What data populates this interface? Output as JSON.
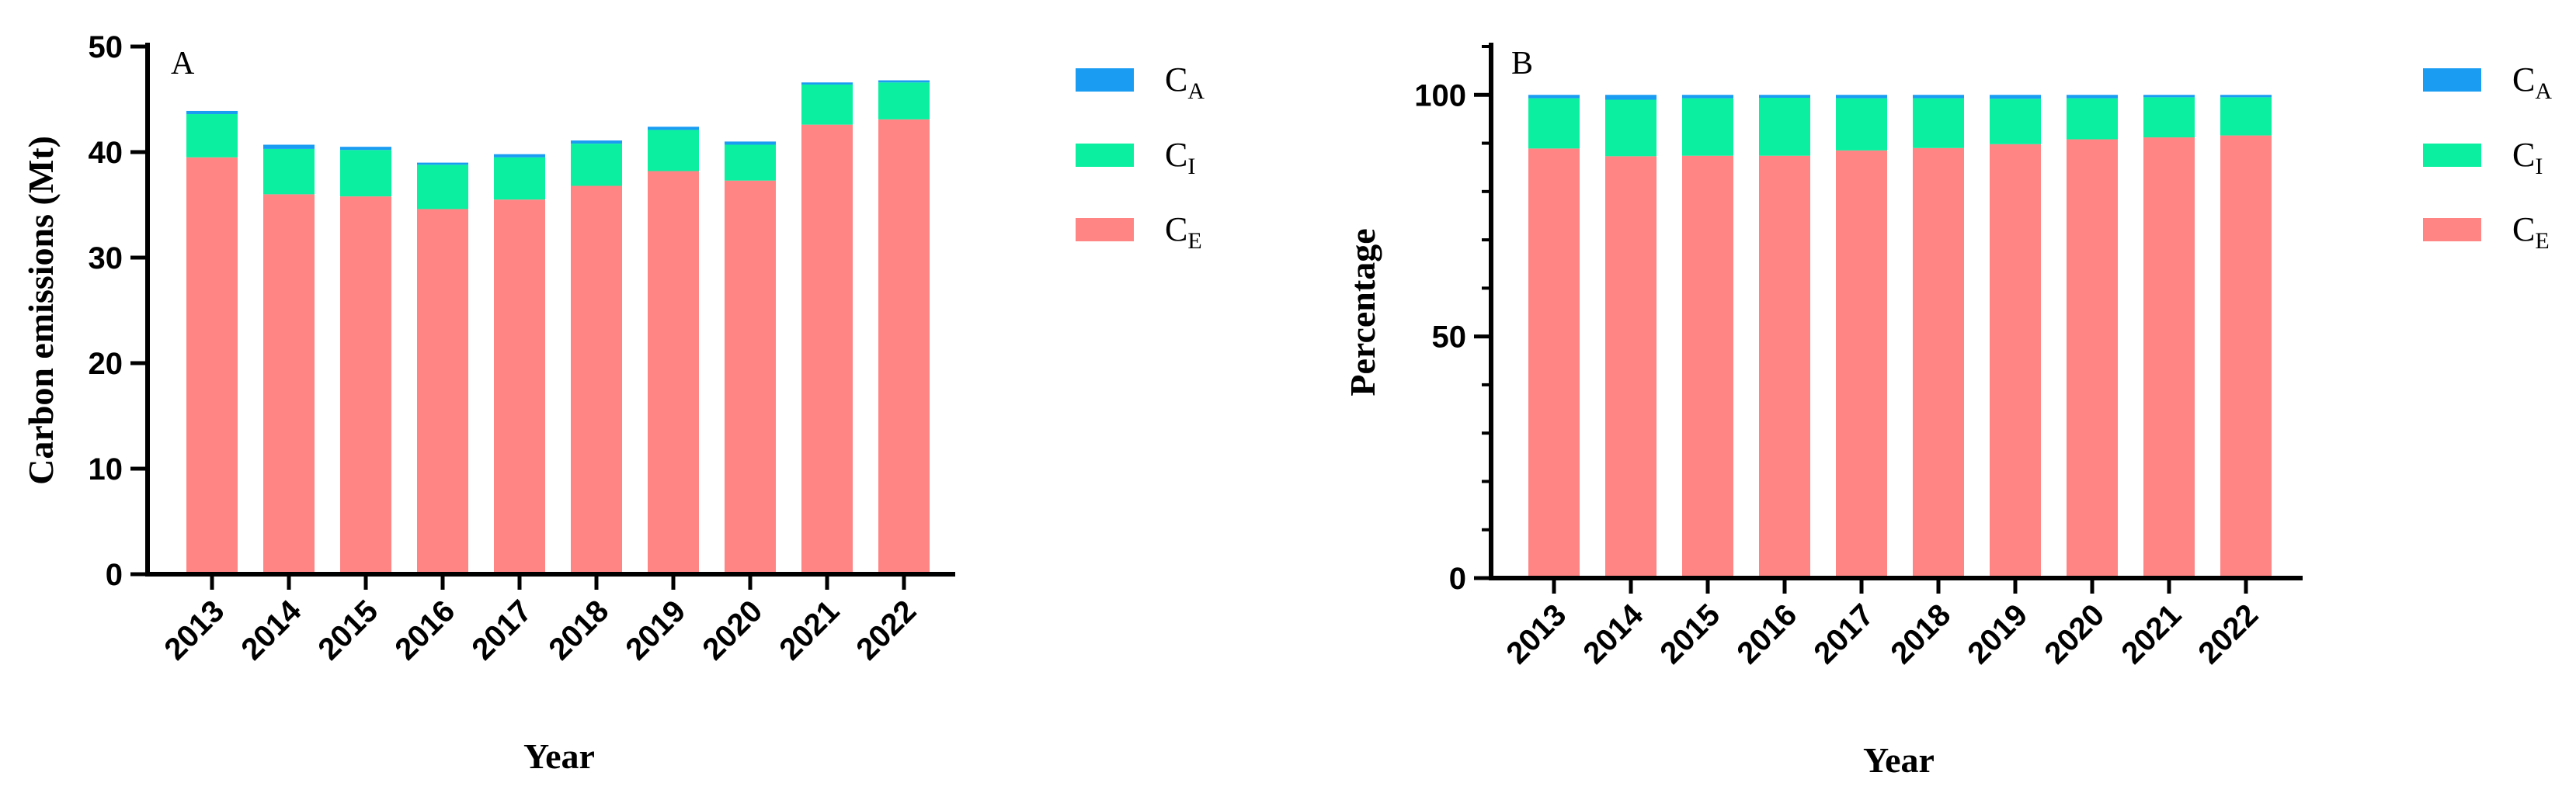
{
  "colors": {
    "CA": "#1a9cf2",
    "CI": "#0af0a0",
    "CE": "#ff8585",
    "axis": "#000000"
  },
  "chart_data": [
    {
      "type": "bar",
      "stacked": true,
      "panel_label": "A",
      "categories": [
        "2013",
        "2014",
        "2015",
        "2016",
        "2017",
        "2018",
        "2019",
        "2020",
        "2021",
        "2022"
      ],
      "series": [
        {
          "name": "CE",
          "label_main": "C",
          "label_sub": "E",
          "values": [
            39.5,
            36.0,
            35.8,
            34.6,
            35.5,
            36.8,
            38.2,
            37.3,
            42.6,
            43.1
          ]
        },
        {
          "name": "CI",
          "label_main": "C",
          "label_sub": "I",
          "values": [
            4.1,
            4.3,
            4.4,
            4.2,
            4.0,
            4.0,
            3.9,
            3.4,
            3.8,
            3.5
          ]
        },
        {
          "name": "CA",
          "label_main": "C",
          "label_sub": "A",
          "values": [
            0.3,
            0.4,
            0.3,
            0.2,
            0.3,
            0.3,
            0.3,
            0.3,
            0.2,
            0.2
          ]
        }
      ],
      "xlabel": "Year",
      "ylabel": "Carbon emissions (Mt)",
      "ylim": [
        0,
        50
      ],
      "yticks": [
        0,
        10,
        20,
        30,
        40,
        50
      ],
      "legend_order": [
        "CA",
        "CI",
        "CE"
      ],
      "legend": "right"
    },
    {
      "type": "bar",
      "stacked": true,
      "panel_label": "B",
      "categories": [
        "2013",
        "2014",
        "2015",
        "2016",
        "2017",
        "2018",
        "2019",
        "2020",
        "2021",
        "2022"
      ],
      "series": [
        {
          "name": "CE",
          "label_main": "C",
          "label_sub": "E",
          "values": [
            88.9,
            87.3,
            87.4,
            87.4,
            88.5,
            89.0,
            89.8,
            90.8,
            91.2,
            91.6
          ]
        },
        {
          "name": "CI",
          "label_main": "C",
          "label_sub": "I",
          "values": [
            10.4,
            11.7,
            11.9,
            12.0,
            10.8,
            10.3,
            9.4,
            8.5,
            8.3,
            7.9
          ]
        },
        {
          "name": "CA",
          "label_main": "C",
          "label_sub": "A",
          "values": [
            0.7,
            1.0,
            0.7,
            0.6,
            0.7,
            0.7,
            0.8,
            0.7,
            0.5,
            0.5
          ]
        }
      ],
      "xlabel": "Year",
      "ylabel": "Percentage",
      "ylim": [
        0,
        110
      ],
      "yticks": [
        0,
        50,
        100
      ],
      "legend_order": [
        "CA",
        "CI",
        "CE"
      ],
      "legend": "right"
    }
  ]
}
